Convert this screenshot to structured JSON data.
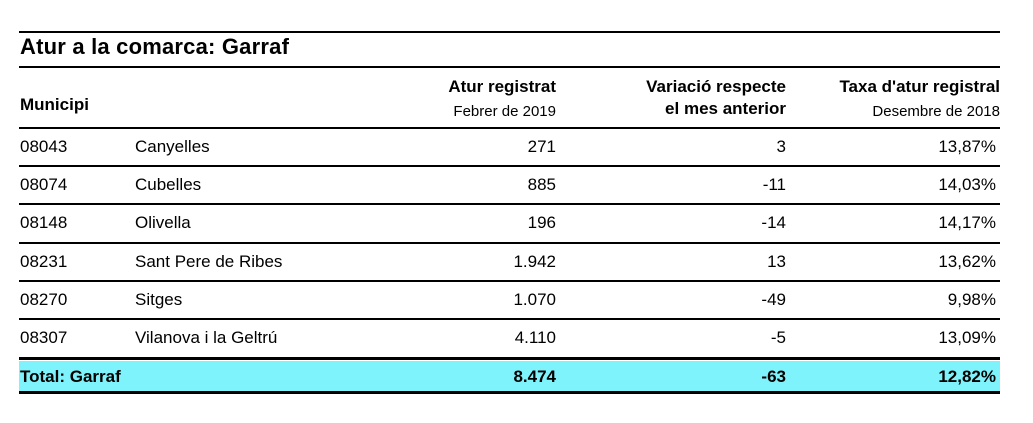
{
  "title": "Atur a la comarca:  Garraf",
  "headers": {
    "municipi": "Municipi",
    "atur": "Atur registrat",
    "atur_sub": "Febrer de 2019",
    "var_line1": "Variació respecte",
    "var_line2": "el mes anterior",
    "taxa": "Taxa d'atur registral",
    "taxa_sub": "Desembre de 2018"
  },
  "rows": [
    {
      "code": "08043",
      "name": "Canyelles",
      "atur": "271",
      "var": "3",
      "taxa": "13,87%"
    },
    {
      "code": "08074",
      "name": "Cubelles",
      "atur": "885",
      "var": "-11",
      "taxa": "14,03%"
    },
    {
      "code": "08148",
      "name": "Olivella",
      "atur": "196",
      "var": "-14",
      "taxa": "14,17%"
    },
    {
      "code": "08231",
      "name": "Sant Pere de Ribes",
      "atur": "1.942",
      "var": "13",
      "taxa": "13,62%"
    },
    {
      "code": "08270",
      "name": "Sitges",
      "atur": "1.070",
      "var": "-49",
      "taxa": "9,98%"
    },
    {
      "code": "08307",
      "name": "Vilanova i la Geltrú",
      "atur": "4.110",
      "var": "-5",
      "taxa": "13,09%"
    }
  ],
  "total": {
    "label": "Total:  Garraf",
    "atur": "8.474",
    "var": "-63",
    "taxa": "12,82%"
  },
  "colors": {
    "total_bg": "#7ff3fb"
  }
}
